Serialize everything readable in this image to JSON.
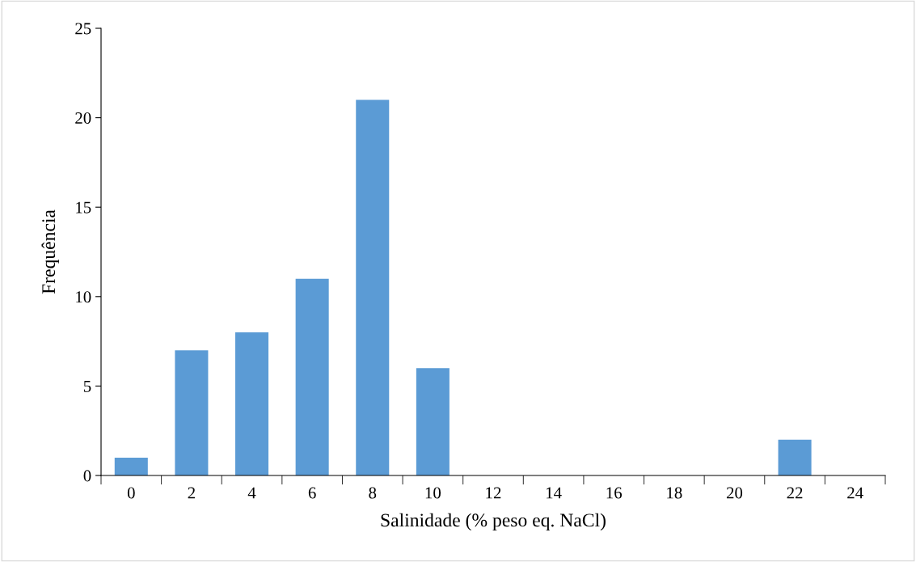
{
  "chart_data": {
    "type": "bar",
    "xlabel": "Salinidade (% peso eq. NaCl)",
    "ylabel": "Frequência",
    "categories": [
      "0",
      "2",
      "4",
      "6",
      "8",
      "10",
      "12",
      "14",
      "16",
      "18",
      "20",
      "22",
      "24"
    ],
    "values": [
      1,
      7,
      8,
      11,
      21,
      6,
      0,
      0,
      0,
      0,
      0,
      2,
      0
    ],
    "color": "#5b9bd5",
    "ylim": [
      0,
      25
    ],
    "yticks": [
      0,
      5,
      10,
      15,
      20,
      25
    ],
    "grid": false,
    "legend": false
  }
}
